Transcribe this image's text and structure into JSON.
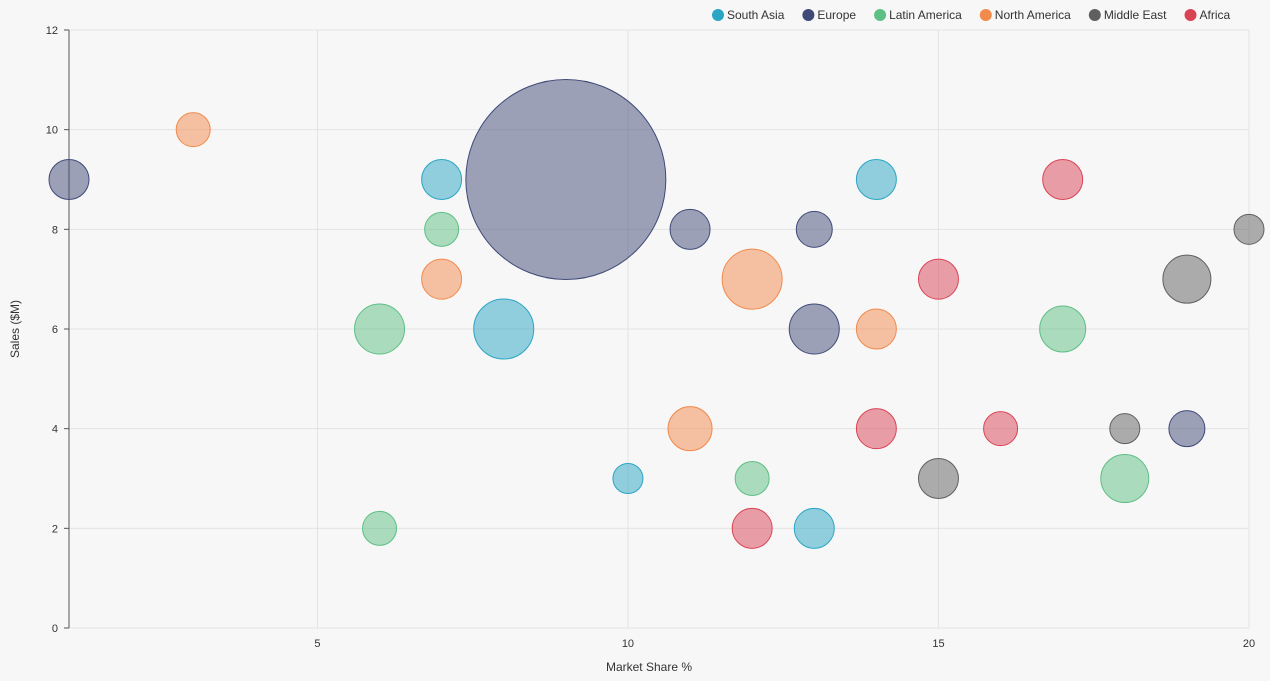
{
  "chart_data": {
    "type": "scatter",
    "subtype": "bubble",
    "title": "",
    "xlabel": "Market Share %",
    "ylabel": "Sales ($M)",
    "xlim": [
      1,
      20
    ],
    "ylim": [
      0,
      12
    ],
    "x_ticks": [
      5,
      10,
      15,
      20
    ],
    "y_ticks": [
      0,
      2,
      4,
      6,
      8,
      10,
      12
    ],
    "grid": true,
    "legend_position": "top-right",
    "series": [
      {
        "name": "South Asia",
        "color": "#2aa5c4",
        "points": [
          {
            "x": 7,
            "y": 9,
            "size": 2
          },
          {
            "x": 8,
            "y": 6,
            "size": 3
          },
          {
            "x": 10,
            "y": 3,
            "size": 1.5
          },
          {
            "x": 13,
            "y": 2,
            "size": 2
          },
          {
            "x": 14,
            "y": 9,
            "size": 2
          }
        ]
      },
      {
        "name": "Europe",
        "color": "#3f4a78",
        "points": [
          {
            "x": 1,
            "y": 9,
            "size": 2
          },
          {
            "x": 9,
            "y": 9,
            "size": 10
          },
          {
            "x": 11,
            "y": 8,
            "size": 2
          },
          {
            "x": 13,
            "y": 8,
            "size": 1.8
          },
          {
            "x": 13,
            "y": 6,
            "size": 2.5
          },
          {
            "x": 19,
            "y": 4,
            "size": 1.8
          }
        ]
      },
      {
        "name": "Latin America",
        "color": "#5dbf84",
        "points": [
          {
            "x": 6,
            "y": 6,
            "size": 2.5
          },
          {
            "x": 6,
            "y": 2,
            "size": 1.7
          },
          {
            "x": 7,
            "y": 8,
            "size": 1.7
          },
          {
            "x": 12,
            "y": 3,
            "size": 1.7
          },
          {
            "x": 17,
            "y": 6,
            "size": 2.3
          },
          {
            "x": 18,
            "y": 3,
            "size": 2.4
          }
        ]
      },
      {
        "name": "North America",
        "color": "#f28a4c",
        "points": [
          {
            "x": 3,
            "y": 10,
            "size": 1.7
          },
          {
            "x": 7,
            "y": 7,
            "size": 2
          },
          {
            "x": 11,
            "y": 4,
            "size": 2.2
          },
          {
            "x": 12,
            "y": 7,
            "size": 3
          },
          {
            "x": 14,
            "y": 6,
            "size": 2
          }
        ]
      },
      {
        "name": "Middle East",
        "color": "#5f5f5f",
        "points": [
          {
            "x": 15,
            "y": 3,
            "size": 2
          },
          {
            "x": 18,
            "y": 4,
            "size": 1.5
          },
          {
            "x": 19,
            "y": 7,
            "size": 2.4
          },
          {
            "x": 20,
            "y": 8,
            "size": 1.5
          }
        ]
      },
      {
        "name": "Africa",
        "color": "#d94455",
        "points": [
          {
            "x": 12,
            "y": 2,
            "size": 2
          },
          {
            "x": 14,
            "y": 4,
            "size": 2
          },
          {
            "x": 15,
            "y": 7,
            "size": 2
          },
          {
            "x": 16,
            "y": 4,
            "size": 1.7
          },
          {
            "x": 17,
            "y": 9,
            "size": 2
          }
        ]
      }
    ]
  }
}
